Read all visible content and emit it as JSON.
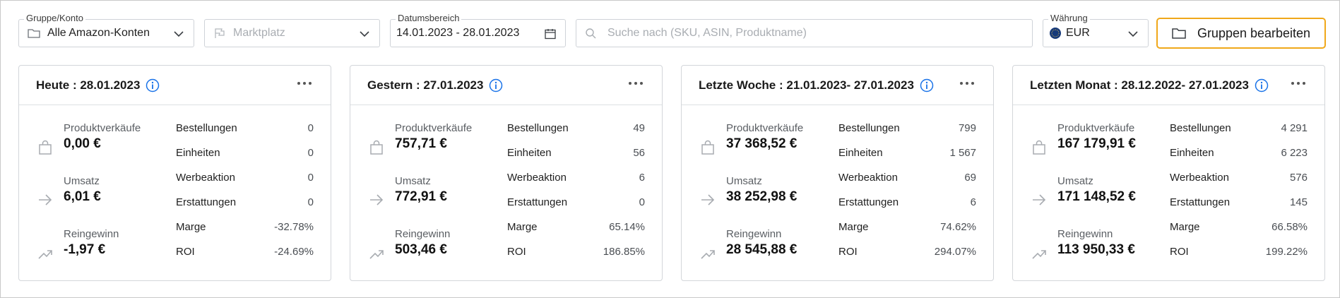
{
  "filters": {
    "group": {
      "legend": "Gruppe/Konto",
      "value": "Alle Amazon-Konten",
      "icon": "folder-icon"
    },
    "marketplace": {
      "placeholder": "Marktplatz",
      "icon": "flag-icon"
    },
    "date_range": {
      "legend": "Datumsbereich",
      "value": "14.01.2023 - 28.01.2023",
      "icon": "calendar-icon"
    },
    "search": {
      "placeholder": "Suche nach (SKU, ASIN, Produktname)",
      "icon": "search-icon"
    },
    "currency": {
      "legend": "Währung",
      "value": "EUR",
      "icon": "eu-flag-icon"
    },
    "edit_groups_button": "Gruppen bearbeiten"
  },
  "colors": {
    "accent_border": "#f0a81a",
    "info_blue": "#1a73e8"
  },
  "labels": {
    "product_sales": "Produktverkäufe",
    "revenue": "Umsatz",
    "net_profit": "Reingewinn",
    "orders": "Bestellungen",
    "units": "Einheiten",
    "promotion": "Werbeaktion",
    "refunds": "Erstattungen",
    "margin": "Marge",
    "roi": "ROI"
  },
  "cards": [
    {
      "title": "Heute : 28.01.2023",
      "product_sales": "0,00 €",
      "revenue": "6,01 €",
      "net_profit": "-1,97 €",
      "orders": "0",
      "units": "0",
      "promotion": "0",
      "refunds": "0",
      "margin": "-32.78%",
      "roi": "-24.69%"
    },
    {
      "title": "Gestern : 27.01.2023",
      "product_sales": "757,71 €",
      "revenue": "772,91 €",
      "net_profit": "503,46 €",
      "orders": "49",
      "units": "56",
      "promotion": "6",
      "refunds": "0",
      "margin": "65.14%",
      "roi": "186.85%"
    },
    {
      "title": "Letzte Woche : 21.01.2023- 27.01.2023",
      "product_sales": "37 368,52 €",
      "revenue": "38 252,98 €",
      "net_profit": "28 545,88 €",
      "orders": "799",
      "units": "1 567",
      "promotion": "69",
      "refunds": "6",
      "margin": "74.62%",
      "roi": "294.07%"
    },
    {
      "title": "Letzten Monat : 28.12.2022- 27.01.2023",
      "product_sales": "167 179,91 €",
      "revenue": "171 148,52 €",
      "net_profit": "113 950,33 €",
      "orders": "4 291",
      "units": "6 223",
      "promotion": "576",
      "refunds": "145",
      "margin": "66.58%",
      "roi": "199.22%"
    }
  ]
}
